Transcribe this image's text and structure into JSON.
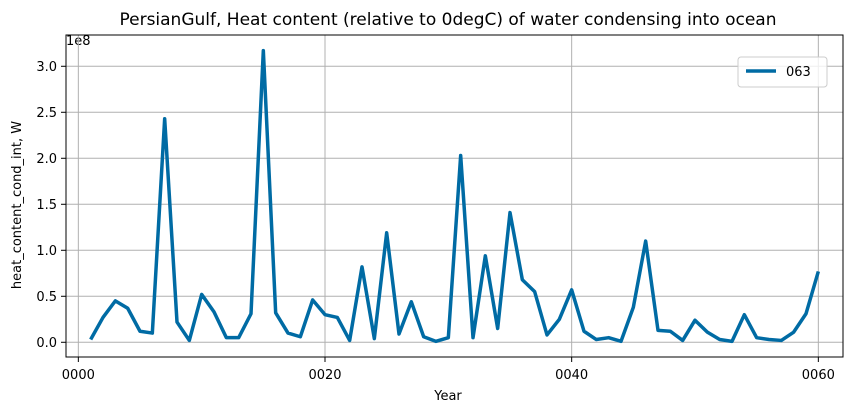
{
  "chart_data": {
    "type": "line",
    "title": "PersianGulf, Heat content (relative to 0degC) of water condensing into ocean",
    "xlabel": "Year",
    "ylabel": "heat_content_cond_int, W",
    "y_offset_label": "1e8",
    "xlim": [
      -1,
      62
    ],
    "ylim": [
      -0.16,
      3.34
    ],
    "y_scale_note": "values in units of 1e8",
    "x_ticks": [
      0,
      20,
      40,
      60
    ],
    "x_tick_labels": [
      "0000",
      "0020",
      "0040",
      "0060"
    ],
    "y_ticks": [
      0.0,
      0.5,
      1.0,
      1.5,
      2.0,
      2.5,
      3.0
    ],
    "y_tick_labels": [
      "0.0",
      "0.5",
      "1.0",
      "1.5",
      "2.0",
      "2.5",
      "3.0"
    ],
    "grid": true,
    "legend_position": "upper-right",
    "series": [
      {
        "name": "063",
        "color": "#006ba4",
        "x": [
          1,
          2,
          3,
          4,
          5,
          6,
          7,
          8,
          9,
          10,
          11,
          12,
          13,
          14,
          15,
          16,
          17,
          18,
          19,
          20,
          21,
          22,
          23,
          24,
          25,
          26,
          27,
          28,
          29,
          30,
          31,
          32,
          33,
          34,
          35,
          36,
          37,
          38,
          39,
          40,
          41,
          42,
          43,
          44,
          45,
          46,
          47,
          48,
          49,
          50,
          51,
          52,
          53,
          54,
          55,
          56,
          57,
          58,
          59,
          60
        ],
        "values": [
          0.03,
          0.27,
          0.45,
          0.37,
          0.12,
          0.1,
          2.43,
          0.22,
          0.02,
          0.52,
          0.33,
          0.05,
          0.05,
          0.31,
          3.17,
          0.32,
          0.1,
          0.06,
          0.46,
          0.3,
          0.27,
          0.02,
          0.82,
          0.04,
          1.19,
          0.09,
          0.44,
          0.06,
          0.01,
          0.05,
          2.03,
          0.05,
          0.94,
          0.15,
          1.41,
          0.68,
          0.55,
          0.08,
          0.25,
          0.57,
          0.12,
          0.03,
          0.05,
          0.01,
          0.38,
          1.1,
          0.13,
          0.12,
          0.02,
          0.24,
          0.11,
          0.03,
          0.01,
          0.3,
          0.05,
          0.03,
          0.02,
          0.11,
          0.31,
          0.77
        ]
      }
    ]
  }
}
